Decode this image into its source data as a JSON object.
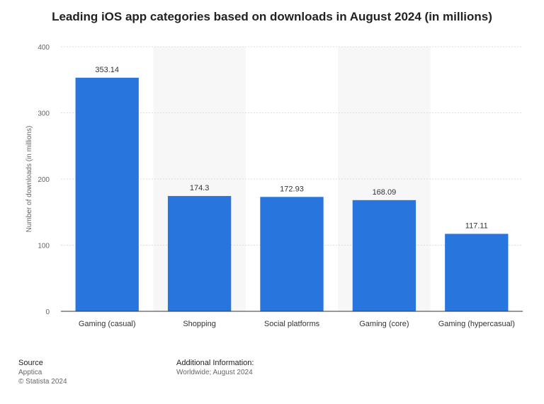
{
  "chart_data": {
    "type": "bar",
    "title": "Leading iOS app categories based on downloads in August 2024 (in millions)",
    "xlabel": "",
    "ylabel": "Number of downloads (in millions)",
    "ylim": [
      0,
      400
    ],
    "yticks": [
      0,
      100,
      200,
      300,
      400
    ],
    "categories": [
      "Gaming (casual)",
      "Shopping",
      "Social platforms",
      "Gaming (core)",
      "Gaming (hypercasual)"
    ],
    "values": [
      353.14,
      174.3,
      172.93,
      168.09,
      117.11
    ],
    "value_labels": [
      "353.14",
      "174.3",
      "172.93",
      "168.09",
      "117.11"
    ],
    "bar_color": "#2876dd",
    "grid": true,
    "legend": "none"
  },
  "footer": {
    "source_heading": "Source",
    "source_name": "Apptica",
    "copyright": "© Statista 2024",
    "info_heading": "Additional Information:",
    "info_text": "Worldwide; August 2024"
  }
}
